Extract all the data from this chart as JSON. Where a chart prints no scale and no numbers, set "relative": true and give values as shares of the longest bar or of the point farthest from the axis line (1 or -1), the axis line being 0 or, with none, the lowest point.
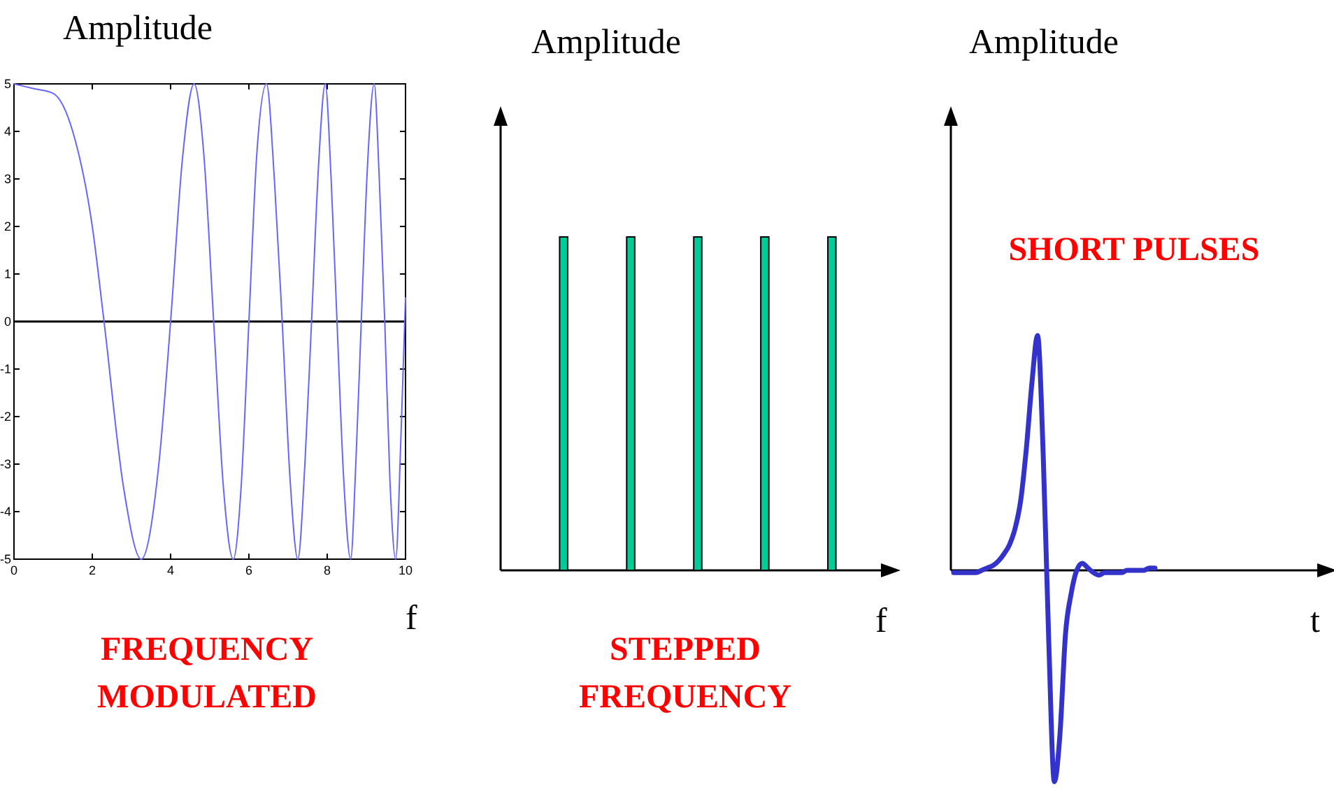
{
  "chart_data": [
    {
      "type": "line",
      "ylabel": "Amplitude",
      "xlabel": "f",
      "annotations": [
        "FREQUENCY\nMODULATED"
      ],
      "x": [
        0,
        0.5,
        1,
        1.5,
        2,
        2.3,
        2.8,
        3.25,
        3.7,
        4,
        4.3,
        4.6,
        4.85,
        5.1,
        5.35,
        5.6,
        5.8,
        6,
        6.2,
        6.45,
        6.65,
        6.85,
        7.05,
        7.25,
        7.43,
        7.6,
        7.78,
        7.95,
        8.1,
        8.25,
        8.42,
        8.6,
        8.73,
        8.87,
        9.03,
        9.2,
        9.33,
        9.47,
        9.6,
        9.75,
        9.88,
        10
      ],
      "series": [
        {
          "color": "#6666ff",
          "values": [
            5,
            4.9,
            4.8,
            4,
            2,
            0,
            -3.5,
            -5,
            -3,
            0,
            3.4,
            5,
            3.5,
            0,
            -3.5,
            -5,
            -3.5,
            0,
            3.5,
            5,
            3,
            0,
            -3.3,
            -5,
            -3,
            0,
            3.3,
            5,
            3,
            0,
            -3.3,
            -5,
            -3,
            0,
            3.3,
            5,
            3,
            0,
            -3.3,
            -5,
            -2.5,
            0.5
          ]
        }
      ],
      "xlim": [
        0,
        10
      ],
      "ylim": [
        -5,
        5
      ],
      "xticks": [
        0,
        2,
        4,
        6,
        8,
        10
      ],
      "yticks": [
        -5,
        -4,
        -3,
        -2,
        -1,
        0,
        1,
        2,
        3,
        4,
        5
      ],
      "ref_lines": [
        {
          "axis": "y",
          "value": 0,
          "color": "#000000"
        }
      ]
    },
    {
      "type": "bar",
      "relative": true,
      "ylabel": "Amplitude",
      "xlabel": "f",
      "annotations": [
        "STEPPED\nFREQUENCY"
      ],
      "categories": [
        null,
        null,
        null,
        null,
        null
      ],
      "values": [
        1,
        1,
        1,
        1,
        1
      ],
      "color": "#00cc99"
    },
    {
      "type": "line",
      "relative": true,
      "ylabel": "Amplitude",
      "xlabel": "t",
      "annotations": [
        "SHORT PULSES"
      ],
      "categories": [
        null,
        null,
        null,
        null,
        null,
        null,
        null,
        null,
        null,
        null,
        null,
        null,
        null,
        null,
        null,
        null,
        null,
        null,
        null,
        null,
        null,
        null,
        null,
        null,
        null,
        null,
        null,
        null,
        null,
        null,
        null,
        null,
        null,
        null,
        null,
        null,
        null,
        null,
        null,
        null,
        null,
        null,
        null,
        null,
        null,
        null,
        null,
        null,
        null,
        null,
        null,
        null,
        null,
        null,
        null,
        null,
        null,
        null,
        null,
        null,
        null,
        null,
        null,
        null,
        null,
        null,
        null,
        null
      ],
      "series": [
        {
          "color": "#3333cc",
          "values": [
            -0.01,
            -0.01,
            -0.01,
            -0.01,
            -0.01,
            0,
            0.01,
            0.02,
            0.04,
            0.07,
            0.11,
            0.18,
            0.3,
            0.52,
            0.8,
            1,
            0.5,
            -0.3,
            -0.9,
            -0.7,
            -0.27,
            -0.1,
            0,
            0.03,
            0.01,
            -0.01,
            -0.02,
            -0.01,
            -0.01,
            -0.01,
            -0.01,
            0,
            0,
            0,
            0,
            0.01,
            0.01,
            null,
            null,
            null,
            null,
            null,
            null,
            null,
            null,
            null,
            null,
            null,
            null,
            null,
            null,
            null,
            null,
            null,
            null,
            null,
            null,
            null,
            null,
            null,
            null,
            null,
            null,
            null,
            null,
            null,
            null,
            null
          ]
        }
      ]
    }
  ]
}
